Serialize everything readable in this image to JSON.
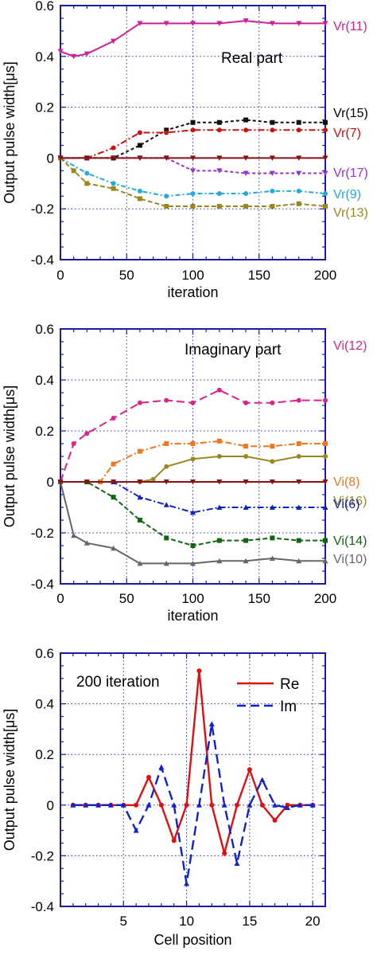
{
  "chart_data": [
    {
      "type": "line",
      "ylabel": "Output pulse width[μs]",
      "xlabel": "iteration",
      "annotation": "Real part",
      "xlim": [
        0,
        200
      ],
      "ylim": [
        -0.4,
        0.6
      ],
      "xticks": [
        "0",
        "50",
        "100",
        "150",
        "200"
      ],
      "yticks": [
        "-0.4",
        "-0.2",
        "0",
        "0.2",
        "0.4",
        "0.6"
      ],
      "grid": true,
      "series": [
        {
          "name": "Vr(11)",
          "color": "#cc2299",
          "dash": "",
          "marker": "tri-down",
          "x": [
            0,
            10,
            20,
            40,
            60,
            80,
            100,
            120,
            140,
            160,
            180,
            200
          ],
          "y": [
            0.42,
            0.4,
            0.41,
            0.46,
            0.53,
            0.53,
            0.53,
            0.53,
            0.54,
            0.53,
            0.53,
            0.53
          ]
        },
        {
          "name": "Vr(15)",
          "color": "#111111",
          "dash": "4,3",
          "marker": "square",
          "x": [
            0,
            20,
            40,
            60,
            80,
            100,
            120,
            140,
            160,
            180,
            200
          ],
          "y": [
            0,
            0,
            0,
            0.05,
            0.11,
            0.14,
            0.14,
            0.15,
            0.14,
            0.14,
            0.14
          ]
        },
        {
          "name": "Vr(7)",
          "color": "#cc1111",
          "dash": "8,3,2,3",
          "marker": "circle",
          "x": [
            0,
            20,
            40,
            60,
            80,
            100,
            120,
            140,
            160,
            180,
            200
          ],
          "y": [
            0,
            0,
            0.04,
            0.1,
            0.1,
            0.11,
            0.11,
            0.11,
            0.11,
            0.11,
            0.11
          ]
        },
        {
          "name": "Vr(17)",
          "color": "#9933cc",
          "dash": "4,3",
          "marker": "tri-down",
          "x": [
            0,
            20,
            40,
            60,
            80,
            100,
            120,
            140,
            160,
            180,
            200
          ],
          "y": [
            0,
            0,
            0,
            0,
            0,
            -0.05,
            -0.05,
            -0.06,
            -0.06,
            -0.06,
            -0.06
          ]
        },
        {
          "name": "Vr(9)",
          "color": "#22aadd",
          "dash": "6,3,2,3",
          "marker": "circle",
          "x": [
            0,
            20,
            40,
            60,
            80,
            100,
            120,
            140,
            160,
            180,
            200
          ],
          "y": [
            0,
            -0.06,
            -0.1,
            -0.13,
            -0.15,
            -0.14,
            -0.14,
            -0.14,
            -0.13,
            -0.13,
            -0.14
          ]
        },
        {
          "name": "Vr(13)",
          "color": "#998822",
          "dash": "6,3",
          "marker": "square",
          "x": [
            0,
            10,
            20,
            40,
            60,
            80,
            100,
            120,
            140,
            160,
            180,
            200
          ],
          "y": [
            0,
            -0.05,
            -0.1,
            -0.12,
            -0.16,
            -0.19,
            -0.19,
            -0.19,
            -0.19,
            -0.19,
            -0.18,
            -0.19
          ]
        },
        {
          "name": "",
          "color": "#881111",
          "dash": "",
          "marker": "tri-down",
          "x": [
            0,
            20,
            40,
            60,
            80,
            100,
            120,
            140,
            160,
            180,
            200
          ],
          "y": [
            0,
            0,
            0,
            0,
            0,
            0,
            0,
            0,
            0,
            0,
            0
          ]
        }
      ]
    },
    {
      "type": "line",
      "ylabel": "Output pulse width[μs]",
      "xlabel": "iteration",
      "annotation": "Imaginary part",
      "xlim": [
        0,
        200
      ],
      "ylim": [
        -0.4,
        0.6
      ],
      "xticks": [
        "0",
        "50",
        "100",
        "150",
        "200"
      ],
      "yticks": [
        "-0.4",
        "-0.2",
        "0",
        "0.2",
        "0.4",
        "0.6"
      ],
      "grid": true,
      "series": [
        {
          "name": "Vi(12)",
          "color": "#dd2288",
          "dash": "10,5",
          "marker": "circle",
          "x": [
            0,
            10,
            20,
            40,
            60,
            80,
            100,
            120,
            140,
            160,
            180,
            200
          ],
          "y": [
            0,
            0.15,
            0.19,
            0.25,
            0.31,
            0.32,
            0.31,
            0.36,
            0.31,
            0.31,
            0.32,
            0.32
          ]
        },
        {
          "name": "Vi(8)",
          "color": "#ee7722",
          "dash": "8,3,2,3",
          "marker": "square",
          "x": [
            0,
            20,
            30,
            40,
            60,
            80,
            100,
            120,
            140,
            160,
            180,
            200
          ],
          "y": [
            0,
            0,
            0,
            0.07,
            0.12,
            0.15,
            0.15,
            0.16,
            0.14,
            0.14,
            0.15,
            0.15
          ]
        },
        {
          "name": "Vi(16)",
          "color": "#998822",
          "dash": "",
          "marker": "circle",
          "x": [
            0,
            20,
            40,
            60,
            70,
            80,
            100,
            120,
            140,
            160,
            180,
            200
          ],
          "y": [
            0,
            0,
            0,
            0,
            0.01,
            0.06,
            0.09,
            0.1,
            0.1,
            0.08,
            0.1,
            0.1
          ]
        },
        {
          "name": "Vi(6)",
          "color": "#1122bb",
          "dash": "8,3,2,3",
          "marker": "tri-up",
          "x": [
            0,
            20,
            40,
            60,
            80,
            100,
            120,
            140,
            160,
            180,
            200
          ],
          "y": [
            0,
            0,
            0,
            -0.06,
            -0.09,
            -0.12,
            -0.1,
            -0.1,
            -0.1,
            -0.1,
            -0.1
          ]
        },
        {
          "name": "Vi(14)",
          "color": "#116611",
          "dash": "6,3",
          "marker": "square",
          "x": [
            0,
            20,
            40,
            60,
            80,
            100,
            120,
            140,
            160,
            180,
            200
          ],
          "y": [
            0,
            0,
            -0.06,
            -0.15,
            -0.22,
            -0.25,
            -0.23,
            -0.23,
            -0.22,
            -0.23,
            -0.23
          ]
        },
        {
          "name": "Vi(10)",
          "color": "#666666",
          "dash": "",
          "marker": "tri-up",
          "x": [
            0,
            10,
            20,
            40,
            60,
            80,
            100,
            120,
            140,
            160,
            180,
            200
          ],
          "y": [
            0,
            -0.21,
            -0.24,
            -0.26,
            -0.32,
            -0.32,
            -0.32,
            -0.31,
            -0.31,
            -0.3,
            -0.31,
            -0.31
          ]
        },
        {
          "name": "",
          "color": "#881111",
          "dash": "",
          "marker": "tri-down",
          "x": [
            0,
            20,
            40,
            60,
            80,
            100,
            120,
            140,
            160,
            180,
            200
          ],
          "y": [
            0,
            0,
            0,
            0,
            0,
            0,
            0,
            0,
            0,
            0,
            0
          ]
        }
      ]
    },
    {
      "type": "line",
      "ylabel": "Output pulse width[μs]",
      "xlabel": "Cell position",
      "annotation": "200 iteration",
      "xlim": [
        0,
        21
      ],
      "ylim": [
        -0.4,
        0.6
      ],
      "xticks": [
        "5",
        "10",
        "15",
        "20"
      ],
      "yticks": [
        "-0.4",
        "-0.2",
        "0",
        "0.2",
        "0.4",
        "0.6"
      ],
      "grid": true,
      "legend_position": "top-right",
      "series": [
        {
          "name": "Re",
          "color": "#dd1111",
          "dash": "",
          "marker": "circle",
          "x": [
            1,
            2,
            3,
            4,
            5,
            6,
            7,
            8,
            9,
            10,
            11,
            12,
            13,
            14,
            15,
            16,
            17,
            18,
            19,
            20
          ],
          "y": [
            0,
            0,
            0,
            0,
            0,
            0,
            0.11,
            0,
            -0.14,
            0,
            0.53,
            0,
            -0.19,
            0,
            0.14,
            0,
            -0.06,
            0,
            0,
            0
          ]
        },
        {
          "name": "Im",
          "color": "#1122cc",
          "dash": "12,6",
          "marker": "tri-up",
          "x": [
            1,
            2,
            3,
            4,
            5,
            6,
            7,
            8,
            9,
            10,
            11,
            12,
            13,
            14,
            15,
            16,
            17,
            18,
            19,
            20
          ],
          "y": [
            0,
            0,
            0,
            0,
            0,
            -0.1,
            0,
            0.15,
            0,
            -0.31,
            0,
            0.32,
            0,
            -0.23,
            0,
            0.1,
            0,
            -0.01,
            0,
            0
          ]
        }
      ]
    }
  ]
}
